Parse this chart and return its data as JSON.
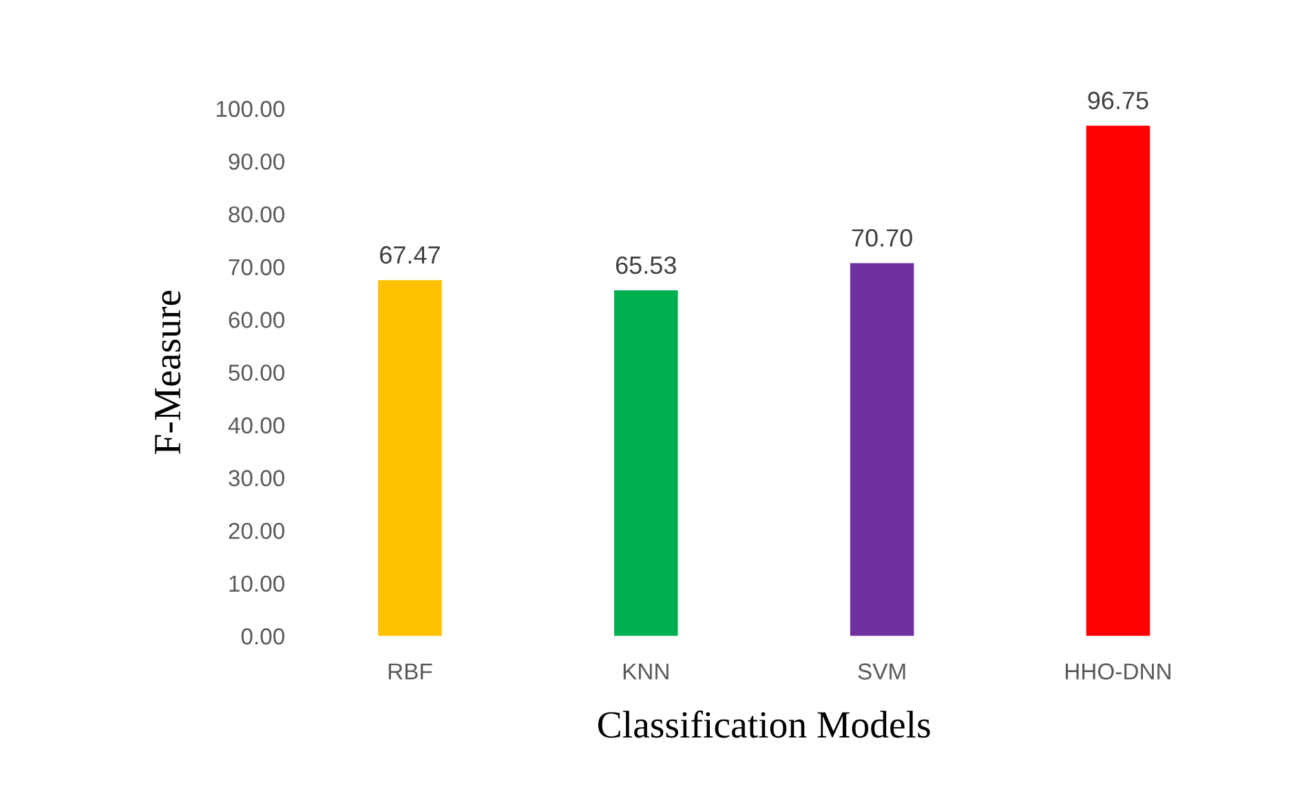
{
  "chart_data": {
    "type": "bar",
    "xlabel": "Classification Models",
    "ylabel": "F-Measure",
    "categories": [
      "RBF",
      "KNN",
      "SVM",
      "HHO-DNN"
    ],
    "values": [
      67.47,
      65.53,
      70.7,
      96.75
    ],
    "colors": [
      "#ffc000",
      "#00b050",
      "#7030a0",
      "#ff0000"
    ],
    "value_labels": [
      "67.47",
      "65.53",
      "70.70",
      "96.75"
    ],
    "ylim": [
      0,
      100
    ],
    "yticks": [
      {
        "value": 0,
        "label": "0.00"
      },
      {
        "value": 10,
        "label": "10.00"
      },
      {
        "value": 20,
        "label": "20.00"
      },
      {
        "value": 30,
        "label": "30.00"
      },
      {
        "value": 40,
        "label": "40.00"
      },
      {
        "value": 50,
        "label": "50.00"
      },
      {
        "value": 60,
        "label": "60.00"
      },
      {
        "value": 70,
        "label": "70.00"
      },
      {
        "value": 80,
        "label": "80.00"
      },
      {
        "value": 90,
        "label": "90.00"
      },
      {
        "value": 100,
        "label": "100.00"
      }
    ],
    "grid": false,
    "legend": false
  }
}
